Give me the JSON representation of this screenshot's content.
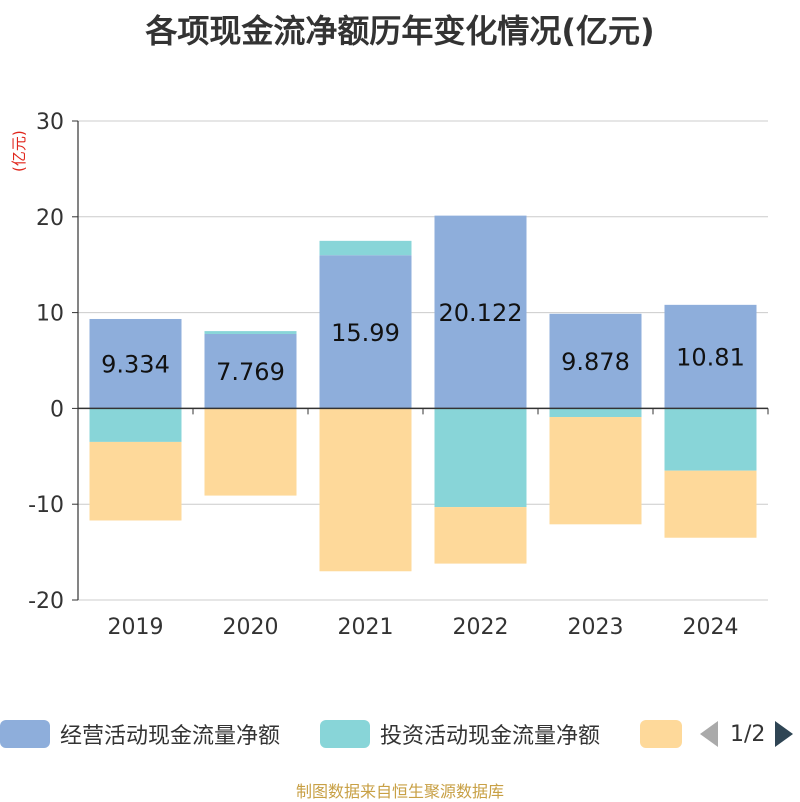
{
  "title": "各项现金流净额历年变化情况(亿元)",
  "unit_label": "(亿元)",
  "source": "制图数据来自恒生聚源数据库",
  "legend": {
    "items": [
      {
        "label": "经营活动现金流量净额",
        "color": "#8eaedb"
      },
      {
        "label": "投资活动现金流量净额",
        "color": "#88d5d8"
      },
      {
        "label": "",
        "color": "#fed99a"
      }
    ],
    "page": "1/2"
  },
  "chart_data": {
    "type": "bar",
    "stacked": true,
    "title": "各项现金流净额历年变化情况(亿元)",
    "ylabel": "(亿元)",
    "ylim": [
      -20,
      30
    ],
    "yticks": [
      30,
      20,
      10,
      0,
      -10,
      -20
    ],
    "categories": [
      "2019",
      "2020",
      "2021",
      "2022",
      "2023",
      "2024"
    ],
    "series": [
      {
        "name": "经营活动现金流量净额",
        "color": "#8eaedb",
        "values": [
          9.334,
          7.769,
          15.99,
          20.122,
          9.878,
          10.81
        ],
        "labels": [
          "9.334",
          "7.769",
          "15.99",
          "20.122",
          "9.878",
          "10.81"
        ]
      },
      {
        "name": "投资活动现金流量净额",
        "color": "#88d5d8",
        "values": [
          -3.5,
          0.3,
          1.5,
          -10.3,
          -0.9,
          -6.5
        ]
      },
      {
        "name": "",
        "color": "#fed99a",
        "values": [
          -8.2,
          -9.1,
          -17.0,
          -5.9,
          -11.2,
          -7.0
        ]
      }
    ]
  }
}
